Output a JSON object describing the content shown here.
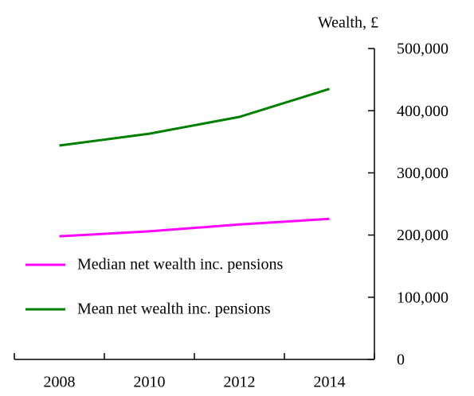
{
  "chart_data": {
    "type": "line",
    "y_axis_label": "Wealth, £",
    "categories": [
      "2008",
      "2010",
      "2012",
      "2014"
    ],
    "series": [
      {
        "name": "Median net wealth inc. pensions",
        "color": "#ff00ff",
        "values": [
          198000,
          206000,
          217000,
          226000
        ]
      },
      {
        "name": "Mean net wealth inc. pensions",
        "color": "#008000",
        "values": [
          344000,
          363000,
          390000,
          435000
        ]
      }
    ],
    "ylim": [
      0,
      500000
    ],
    "yticks": [
      {
        "value": 0,
        "label": "0"
      },
      {
        "value": 100000,
        "label": "100,000"
      },
      {
        "value": 200000,
        "label": "200,000"
      },
      {
        "value": 300000,
        "label": "300,000"
      },
      {
        "value": 400000,
        "label": "400,000"
      },
      {
        "value": 500000,
        "label": "500,000"
      }
    ],
    "legend": "lower left"
  }
}
